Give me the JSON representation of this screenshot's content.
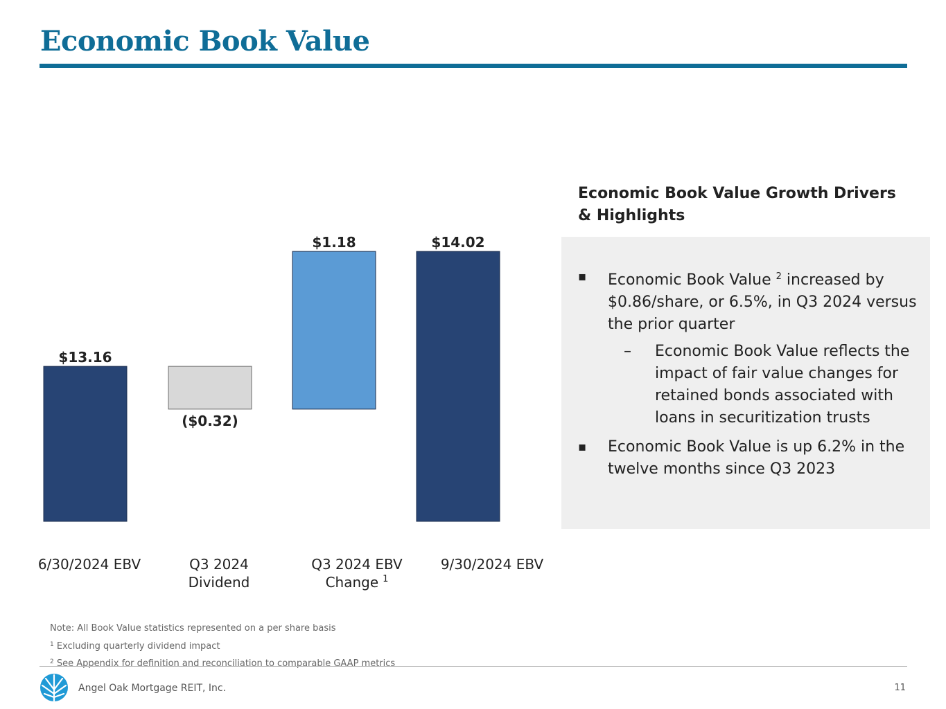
{
  "page": {
    "title": "Economic Book Value",
    "page_number": "11",
    "company": "Angel Oak Mortgage REIT, Inc."
  },
  "colors": {
    "title": "#0f6d97",
    "ebv_bar": "#274474",
    "dividend_bar": "#d8d8d8",
    "change_bar": "#5b9bd5",
    "panel_bg": "#efefef"
  },
  "chart_data": {
    "type": "bar",
    "subtype": "waterfall",
    "categories": [
      "6/30/2024 EBV",
      "Q3 2024 Dividend",
      "Q3 2024 EBV Change",
      "9/30/2024 EBV"
    ],
    "category_footnotes": [
      "",
      "",
      "1",
      ""
    ],
    "values": [
      13.16,
      -0.32,
      1.18,
      14.02
    ],
    "data_labels": [
      "$13.16",
      "($0.32)",
      "$1.18",
      "$14.02"
    ],
    "bar_kinds": [
      "total",
      "delta",
      "delta",
      "total"
    ],
    "baseline": 12.0,
    "legend": "none",
    "grid": false
  },
  "panel": {
    "heading": "Economic Book Value Growth Drivers & Highlights",
    "bullet1_pre": "Economic Book Value ",
    "bullet1_sup": "2",
    "bullet1_post": " increased by $0.86/share, or 6.5%, in Q3 2024 versus the prior quarter",
    "sub_bullet": "Economic Book Value reflects the impact of fair value changes for retained bonds associated with loans in securitization trusts",
    "bullet2": "Economic Book Value is up 6.2% in the twelve months since Q3 2023",
    "bullet_mark": "▪",
    "sub_mark": "–"
  },
  "notes": {
    "note": "Note: All Book Value statistics represented on a per share basis",
    "fn1_mark": "1",
    "fn1": " Excluding quarterly dividend impact",
    "fn2_mark": "2",
    "fn2": " See Appendix for definition and reconciliation to comparable GAAP metrics"
  }
}
